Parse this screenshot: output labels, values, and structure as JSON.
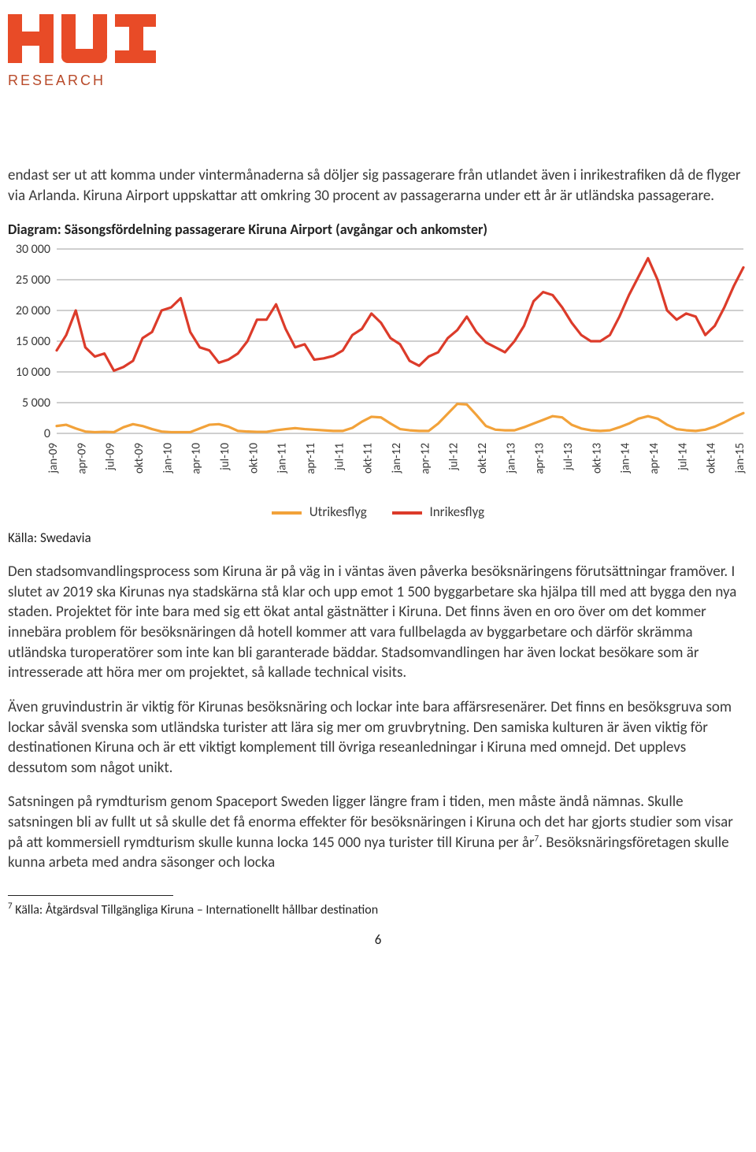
{
  "logo": {
    "text": "HUI",
    "subtext": "RESEARCH",
    "color": "#e84b27",
    "sub_color": "#b84a2a"
  },
  "paragraphs": {
    "intro": "endast ser ut att komma under vintermånaderna så döljer sig passagerare från utlandet även i inrikestrafiken då de flyger via Arlanda. Kiruna Airport uppskattar att omkring 30 procent av passagerarna under ett år är utländska passagerare.",
    "p1": "Den stadsomvandlingsprocess som Kiruna är på väg in i väntas även påverka besöksnäringens förutsättningar framöver. I slutet av 2019 ska Kirunas nya stadskärna stå klar och upp emot 1 500 byggarbetare ska hjälpa till med att bygga den nya staden. Projektet för inte bara med sig ett ökat antal gästnätter i Kiruna. Det finns även en oro över om det kommer innebära problem för besöksnäringen då hotell kommer att vara fullbelagda av byggarbetare och därför skrämma utländska turoperatörer som inte kan bli garanterade bäddar. Stadsomvandlingen har även lockat besökare som är intresserade att höra mer om projektet, så kallade technical visits.",
    "p2": "Även gruvindustrin är viktig för Kirunas besöksnäring och lockar inte bara affärsresenärer. Det finns en besöksgruva som lockar såväl svenska som utländska turister att lära sig mer om gruvbrytning. Den samiska kulturen är även viktig för destinationen Kiruna och är ett viktigt komplement till övriga reseanledningar i Kiruna med omnejd. Det upplevs dessutom som något unikt.",
    "p3_a": "Satsningen på rymdturism genom Spaceport Sweden ligger längre fram i tiden, men måste ändå nämnas. Skulle satsningen bli av fullt ut så skulle det få enorma effekter för besöksnäringen i Kiruna och det har gjorts studier som visar på att kommersiell rymdturism skulle kunna locka 145 000 nya turister till Kiruna per år",
    "p3_sup": "7",
    "p3_b": ". Besöksnäringsföretagen skulle kunna arbeta med andra säsonger och locka"
  },
  "chart": {
    "title": "Diagram: Säsongsfördelning passagerare Kiruna Airport (avgångar och ankomster)",
    "type": "line",
    "background_color": "#ffffff",
    "grid_color": "#bfbfbf",
    "ylim": [
      0,
      30000
    ],
    "ytick_step": 5000,
    "ytick_labels": [
      "0",
      "5 000",
      "10 000",
      "15 000",
      "20 000",
      "25 000",
      "30 000"
    ],
    "x_labels": [
      "jan-09",
      "apr-09",
      "jul-09",
      "okt-09",
      "jan-10",
      "apr-10",
      "jul-10",
      "okt-10",
      "jan-11",
      "apr-11",
      "jul-11",
      "okt-11",
      "jan-12",
      "apr-12",
      "jul-12",
      "okt-12",
      "jan-13",
      "apr-13",
      "jul-13",
      "okt-13",
      "jan-14",
      "apr-14",
      "jul-14",
      "okt-14",
      "jan-15"
    ],
    "x_label_step": 3,
    "line_width": 3.2,
    "series": [
      {
        "name": "Utrikesflyg",
        "color": "#f2a23a",
        "values": [
          1200,
          1400,
          800,
          300,
          200,
          250,
          200,
          1000,
          1500,
          1200,
          700,
          300,
          200,
          200,
          200,
          800,
          1400,
          1500,
          1100,
          400,
          300,
          250,
          250,
          500,
          700,
          850,
          700,
          600,
          500,
          400,
          400,
          900,
          1900,
          2700,
          2600,
          1600,
          700,
          500,
          400,
          400,
          1600,
          3200,
          4800,
          4700,
          3000,
          1200,
          600,
          500,
          500,
          1000,
          1600,
          2200,
          2800,
          2600,
          1400,
          800,
          500,
          400,
          500,
          1000,
          1600,
          2400,
          2800,
          2400,
          1400,
          700,
          500,
          400,
          600,
          1100,
          1800,
          2600,
          3300
        ]
      },
      {
        "name": "Inrikesflyg",
        "color": "#dc3b2a",
        "values": [
          13500,
          16000,
          20000,
          14000,
          12500,
          13000,
          10200,
          10800,
          11800,
          15500,
          16500,
          20000,
          20500,
          22000,
          16500,
          14000,
          13500,
          11500,
          12000,
          13000,
          15000,
          18500,
          18500,
          21000,
          17000,
          14000,
          14500,
          12000,
          12200,
          12600,
          13500,
          16000,
          17000,
          19500,
          18000,
          15500,
          14500,
          11800,
          11000,
          12500,
          13200,
          15500,
          16800,
          19000,
          16500,
          14800,
          14000,
          13200,
          15000,
          17500,
          21500,
          23000,
          22500,
          20500,
          18000,
          16000,
          15000,
          15000,
          16000,
          19000,
          22500,
          25500,
          28500,
          25000,
          20000,
          18500,
          19500,
          19000,
          16000,
          17500,
          20500,
          24000,
          27000
        ]
      }
    ],
    "legend_label_utrikes": "Utrikesflyg",
    "legend_label_inrikes": "Inrikesflyg",
    "title_fontsize": 18,
    "label_fontsize": 16,
    "xtick_fontsize": 15
  },
  "source_label": "Källa: Swedavia",
  "footnote": {
    "marker": "7",
    "text": " Källa: Åtgärdsval Tillgängliga Kiruna – Internationellt hållbar destination"
  },
  "page_number": "6"
}
